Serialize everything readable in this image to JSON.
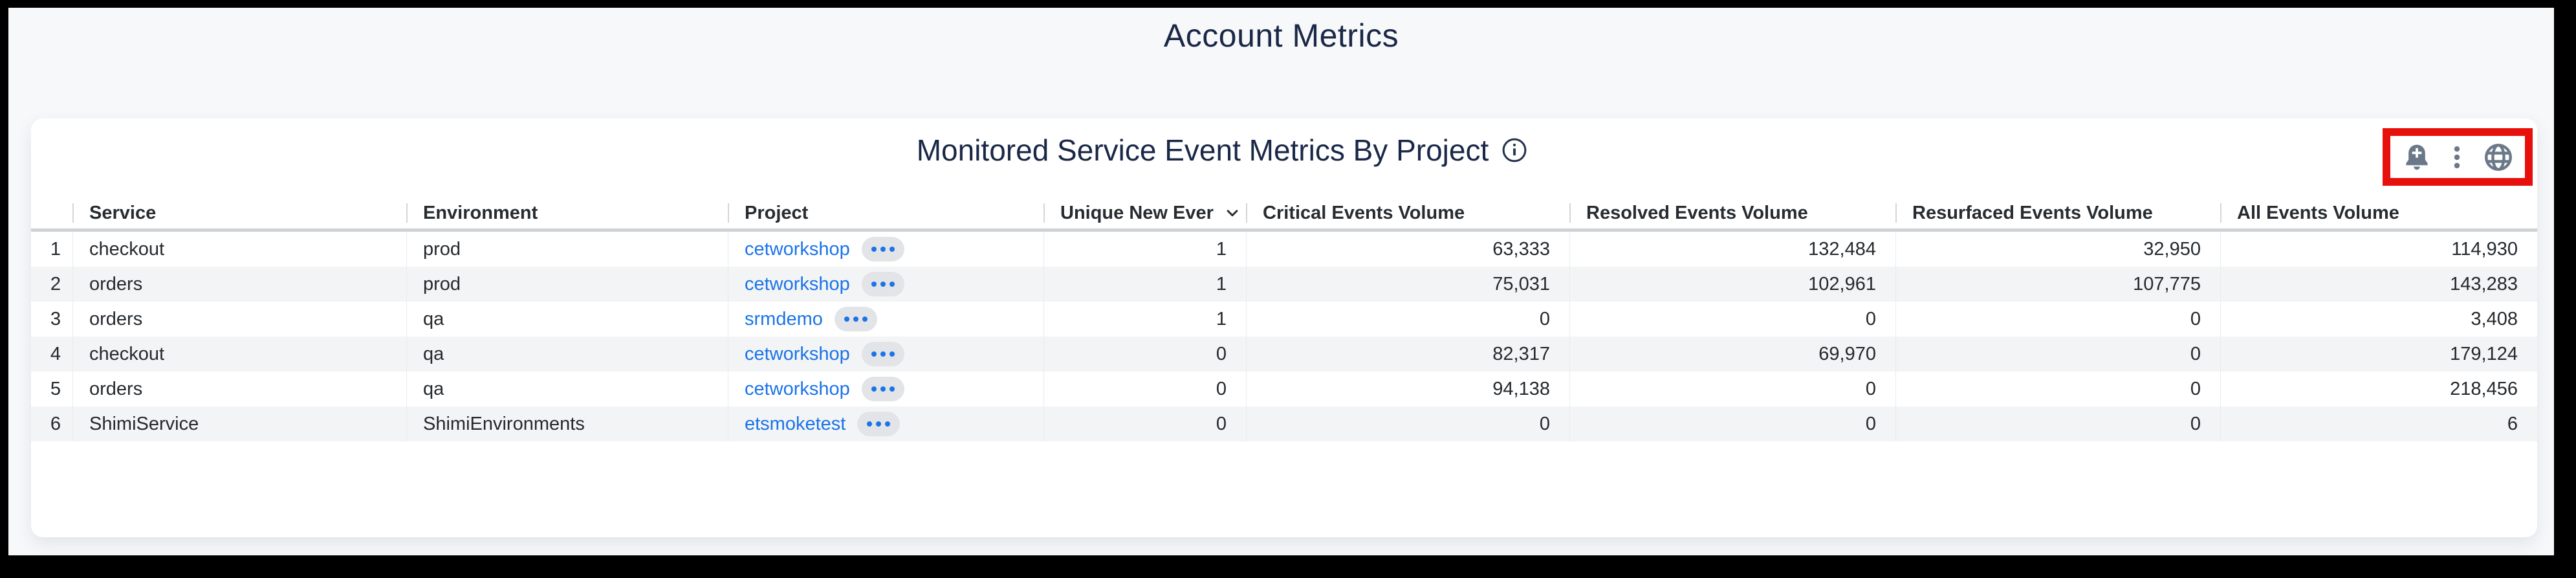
{
  "page": {
    "title": "Account Metrics"
  },
  "panel": {
    "title": "Monitored Service Event Metrics By Project",
    "info_icon": "info-icon",
    "toolbar_icons": [
      "add-alert-bell-icon",
      "kebab-menu-icon",
      "globe-icon"
    ]
  },
  "table": {
    "columns": [
      {
        "label": "",
        "cell_align": "right",
        "pad": 18
      },
      {
        "label": "Service",
        "cell_align": "left",
        "pad": 26
      },
      {
        "label": "Environment",
        "cell_align": "left",
        "pad": 26
      },
      {
        "label": "Project",
        "cell_align": "left",
        "pad": 26
      },
      {
        "label": "Unique New Ever",
        "cell_align": "right",
        "pad": 30,
        "sorted": "desc"
      },
      {
        "label": "Critical Events Volume",
        "cell_align": "right",
        "pad": 30
      },
      {
        "label": "Resolved Events Volume",
        "cell_align": "right",
        "pad": 30
      },
      {
        "label": "Resurfaced Events Volume",
        "cell_align": "right",
        "pad": 30
      },
      {
        "label": "All Events Volume",
        "cell_align": "right",
        "pad": 30
      }
    ],
    "rows": [
      {
        "num": "1",
        "service": "checkout",
        "environment": "prod",
        "project": "cetworkshop",
        "unique_new_events": "1",
        "critical_events_volume": "63,333",
        "resolved_events_volume": "132,484",
        "resurfaced_events_volume": "32,950",
        "all_events_volume": "114,930"
      },
      {
        "num": "2",
        "service": "orders",
        "environment": "prod",
        "project": "cetworkshop",
        "unique_new_events": "1",
        "critical_events_volume": "75,031",
        "resolved_events_volume": "102,961",
        "resurfaced_events_volume": "107,775",
        "all_events_volume": "143,283"
      },
      {
        "num": "3",
        "service": "orders",
        "environment": "qa",
        "project": "srmdemo",
        "unique_new_events": "1",
        "critical_events_volume": "0",
        "resolved_events_volume": "0",
        "resurfaced_events_volume": "0",
        "all_events_volume": "3,408"
      },
      {
        "num": "4",
        "service": "checkout",
        "environment": "qa",
        "project": "cetworkshop",
        "unique_new_events": "0",
        "critical_events_volume": "82,317",
        "resolved_events_volume": "69,970",
        "resurfaced_events_volume": "0",
        "all_events_volume": "179,124"
      },
      {
        "num": "5",
        "service": "orders",
        "environment": "qa",
        "project": "cetworkshop",
        "unique_new_events": "0",
        "critical_events_volume": "94,138",
        "resolved_events_volume": "0",
        "resurfaced_events_volume": "0",
        "all_events_volume": "218,456"
      },
      {
        "num": "6",
        "service": "ShimiService",
        "environment": "ShimiEnvironments",
        "project": "etsmoketest",
        "unique_new_events": "0",
        "critical_events_volume": "0",
        "resolved_events_volume": "0",
        "resurfaced_events_volume": "0",
        "all_events_volume": "6"
      }
    ]
  },
  "colors": {
    "title_navy": "#1a2847",
    "link_blue": "#1a73e8",
    "icon_slate": "#6a7888",
    "highlight_red": "#e8100c",
    "row_stripe": "#f3f4f5",
    "page_bg": "#f7f8fa"
  }
}
